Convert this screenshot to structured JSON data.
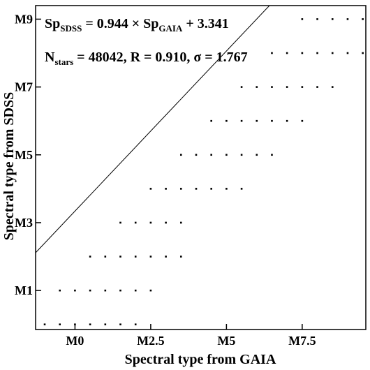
{
  "chart_data": {
    "type": "scatter",
    "xlabel": "Spectral type from GAIA",
    "ylabel": "Spectral type from SDSS",
    "xlim": [
      -1.3,
      9.6
    ],
    "ylim": [
      -0.15,
      9.4
    ],
    "x_ticks": [
      {
        "value": 0,
        "label": "M0"
      },
      {
        "value": 2.5,
        "label": "M2.5"
      },
      {
        "value": 5,
        "label": "M5"
      },
      {
        "value": 7.5,
        "label": "M7.5"
      }
    ],
    "y_ticks": [
      {
        "value": 1,
        "label": "M1"
      },
      {
        "value": 3,
        "label": "M3"
      },
      {
        "value": 5,
        "label": "M5"
      },
      {
        "value": 7,
        "label": "M7"
      },
      {
        "value": 9,
        "label": "M9"
      }
    ],
    "rows": [
      {
        "y": 0,
        "x_start": -1,
        "x_end": 2,
        "step": 0.5
      },
      {
        "y": 1,
        "x_start": -0.5,
        "x_end": 2.5,
        "step": 0.5
      },
      {
        "y": 2,
        "x_start": 0.5,
        "x_end": 3.5,
        "step": 0.5
      },
      {
        "y": 3,
        "x_start": 1.5,
        "x_end": 3.5,
        "step": 0.5
      },
      {
        "y": 4,
        "x_start": 2.5,
        "x_end": 5.5,
        "step": 0.5
      },
      {
        "y": 5,
        "x_start": 3.5,
        "x_end": 6.5,
        "step": 0.5
      },
      {
        "y": 6,
        "x_start": 4.5,
        "x_end": 7.5,
        "step": 0.5
      },
      {
        "y": 7,
        "x_start": 5.5,
        "x_end": 8.5,
        "step": 0.5
      },
      {
        "y": 8,
        "x_start": 6.5,
        "x_end": 9.5,
        "step": 0.5
      },
      {
        "y": 9,
        "x_start": 7.5,
        "x_end": 9.5,
        "step": 0.5
      }
    ],
    "fit_line": {
      "slope": 0.944,
      "intercept": 3.341
    },
    "grid": false,
    "annotations": {
      "line1": {
        "sp1": "Sp",
        "sub1": "SDSS",
        "mid": " = 0.944 × Sp",
        "sub2": "GAIA",
        "tail": " + 3.341"
      },
      "line2": {
        "n": "N",
        "sub": "stars",
        "tail": " = 48042, R = 0.910, σ  = 1.767"
      }
    }
  }
}
